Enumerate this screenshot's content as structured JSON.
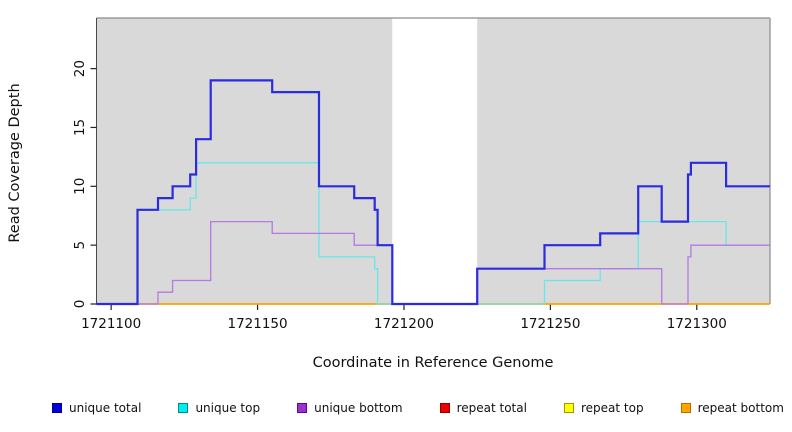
{
  "chart_data": {
    "type": "line",
    "subtype": "step-coverage-plot",
    "title": "",
    "xlabel": "Coordinate in Reference Genome",
    "ylabel": "Read Coverage Depth",
    "xlim": [
      1721095,
      1721325
    ],
    "ylim": [
      0,
      24.3
    ],
    "x_ticks": [
      1721100,
      1721150,
      1721200,
      1721250,
      1721300
    ],
    "y_ticks": [
      0,
      5,
      10,
      15,
      20
    ],
    "grid": false,
    "plot_bg": "#d9d9d9",
    "no_data_region": [
      1721196,
      1721225
    ],
    "legend_position": "bottom",
    "axis_color": "#4a4a4a",
    "box_color": "#8c8c8c",
    "draw_order": [
      3,
      4,
      5,
      1,
      2,
      0
    ],
    "series": [
      {
        "label": "unique total",
        "color": "#2b2be0",
        "legend_fill": "#0000dd",
        "legend_border": "#000080",
        "line_width": 2.2,
        "points": [
          [
            1721095,
            0
          ],
          [
            1721109,
            8
          ],
          [
            1721116,
            9
          ],
          [
            1721121,
            10
          ],
          [
            1721127,
            11
          ],
          [
            1721129,
            14
          ],
          [
            1721134,
            19
          ],
          [
            1721155,
            18
          ],
          [
            1721171,
            10
          ],
          [
            1721183,
            9
          ],
          [
            1721190,
            8
          ],
          [
            1721191,
            5
          ],
          [
            1721196,
            0
          ],
          [
            1721225,
            3
          ],
          [
            1721248,
            5
          ],
          [
            1721267,
            6
          ],
          [
            1721280,
            10
          ],
          [
            1721288,
            7
          ],
          [
            1721297,
            11
          ],
          [
            1721298,
            12
          ],
          [
            1721310,
            10
          ]
        ],
        "x_end": 1721325
      },
      {
        "label": "unique top",
        "color": "#68e7e9",
        "legend_fill": "#00eeee",
        "legend_border": "#008b8b",
        "line_width": 1.3,
        "points": [
          [
            1721095,
            0
          ],
          [
            1721109,
            8
          ],
          [
            1721127,
            9
          ],
          [
            1721129,
            12
          ],
          [
            1721171,
            4
          ],
          [
            1721190,
            3
          ],
          [
            1721191,
            0
          ],
          [
            1721248,
            2
          ],
          [
            1721267,
            3
          ],
          [
            1721280,
            7
          ],
          [
            1721310,
            5
          ]
        ],
        "x_end": 1721325
      },
      {
        "label": "unique bottom",
        "color": "#b678e3",
        "legend_fill": "#9932cc",
        "legend_border": "#5c0b8e",
        "line_width": 1.3,
        "points": [
          [
            1721095,
            0
          ],
          [
            1721116,
            1
          ],
          [
            1721121,
            2
          ],
          [
            1721134,
            7
          ],
          [
            1721155,
            6
          ],
          [
            1721183,
            5
          ],
          [
            1721196,
            0
          ],
          [
            1721225,
            3
          ],
          [
            1721288,
            0
          ],
          [
            1721297,
            4
          ],
          [
            1721298,
            5
          ]
        ],
        "x_end": 1721325
      },
      {
        "label": "repeat total",
        "color": "#dd0000",
        "legend_fill": "#ee0000",
        "legend_border": "#8b0000",
        "line_width": 1.3,
        "points": [
          [
            1721095,
            0
          ]
        ],
        "x_end": 1721325
      },
      {
        "label": "repeat top",
        "color": "#f5f500",
        "legend_fill": "#ffff00",
        "legend_border": "#9a9a00",
        "line_width": 1.3,
        "points": [
          [
            1721095,
            0
          ]
        ],
        "x_end": 1721325
      },
      {
        "label": "repeat bottom",
        "color": "#ffa500",
        "legend_fill": "#ffa500",
        "legend_border": "#b06f00",
        "line_width": 1.6,
        "points": [
          [
            1721095,
            0
          ]
        ],
        "x_end": 1721325
      }
    ]
  }
}
